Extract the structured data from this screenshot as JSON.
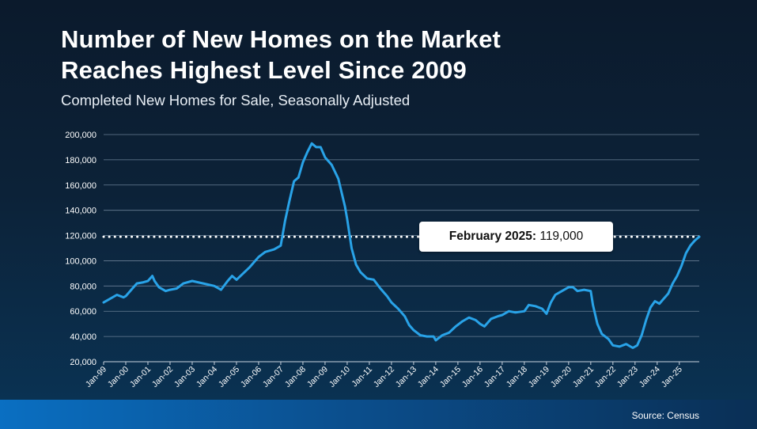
{
  "title_line1": "Number of New Homes on the Market",
  "title_line2": "Reaches Highest Level Since 2009",
  "subtitle": "Completed New Homes for Sale, Seasonally Adjusted",
  "source": "Source: Census",
  "callout": {
    "label": "February 2025:",
    "value": "119,000"
  },
  "colors": {
    "line": "#29a3e8",
    "grid": "#6a7f95",
    "reference": "#ffffff"
  },
  "chart_data": {
    "type": "line",
    "title": "Completed New Homes for Sale, Seasonally Adjusted",
    "xlabel": "",
    "ylabel": "",
    "ylim": [
      20000,
      200000
    ],
    "y_ticks": [
      20000,
      40000,
      60000,
      80000,
      100000,
      120000,
      140000,
      160000,
      180000,
      200000
    ],
    "y_tick_labels": [
      "20,000",
      "40,000",
      "60,000",
      "80,000",
      "100,000",
      "120,000",
      "140,000",
      "160,000",
      "180,000",
      "200,000"
    ],
    "x_ticks": [
      "Jan-99",
      "Jan-00",
      "Jan-01",
      "Jan-02",
      "Jan-03",
      "Jan-04",
      "Jan-05",
      "Jan-06",
      "Jan-07",
      "Jan-08",
      "Jan-09",
      "Jan-10",
      "Jan-11",
      "Jan-12",
      "Jan-13",
      "Jan-14",
      "Jan-15",
      "Jan-16",
      "Jan-17",
      "Jan-18",
      "Jan-19",
      "Jan-20",
      "Jan-21",
      "Jan-22",
      "Jan-23",
      "Jan-24",
      "Jan-25"
    ],
    "reference_line": {
      "value": 119000,
      "style": "dotted",
      "label": "February 2025: 119,000"
    },
    "series": [
      {
        "name": "Completed New Homes for Sale",
        "points": [
          [
            1999.0,
            67000
          ],
          [
            1999.3,
            70000
          ],
          [
            1999.6,
            73000
          ],
          [
            1999.9,
            71000
          ],
          [
            2000.0,
            72000
          ],
          [
            2000.3,
            78000
          ],
          [
            2000.5,
            82000
          ],
          [
            2000.8,
            83000
          ],
          [
            2001.0,
            84000
          ],
          [
            2001.2,
            88000
          ],
          [
            2001.3,
            84000
          ],
          [
            2001.5,
            79000
          ],
          [
            2001.8,
            76000
          ],
          [
            2002.0,
            77000
          ],
          [
            2002.3,
            78000
          ],
          [
            2002.6,
            82000
          ],
          [
            2003.0,
            84000
          ],
          [
            2003.5,
            82000
          ],
          [
            2004.0,
            80000
          ],
          [
            2004.3,
            77000
          ],
          [
            2004.6,
            84000
          ],
          [
            2004.8,
            88000
          ],
          [
            2005.0,
            85000
          ],
          [
            2005.3,
            90000
          ],
          [
            2005.6,
            95000
          ],
          [
            2006.0,
            103000
          ],
          [
            2006.3,
            107000
          ],
          [
            2006.7,
            109000
          ],
          [
            2007.0,
            112000
          ],
          [
            2007.2,
            132000
          ],
          [
            2007.4,
            148000
          ],
          [
            2007.6,
            163000
          ],
          [
            2007.8,
            166000
          ],
          [
            2008.0,
            178000
          ],
          [
            2008.2,
            186000
          ],
          [
            2008.4,
            193000
          ],
          [
            2008.6,
            190000
          ],
          [
            2008.8,
            190000
          ],
          [
            2009.0,
            182000
          ],
          [
            2009.3,
            176000
          ],
          [
            2009.6,
            165000
          ],
          [
            2009.9,
            143000
          ],
          [
            2010.0,
            133000
          ],
          [
            2010.2,
            110000
          ],
          [
            2010.4,
            97000
          ],
          [
            2010.6,
            91000
          ],
          [
            2010.9,
            86000
          ],
          [
            2011.2,
            85000
          ],
          [
            2011.5,
            78000
          ],
          [
            2011.8,
            72000
          ],
          [
            2012.0,
            67000
          ],
          [
            2012.3,
            62000
          ],
          [
            2012.6,
            56000
          ],
          [
            2012.8,
            49000
          ],
          [
            2013.0,
            45000
          ],
          [
            2013.3,
            41000
          ],
          [
            2013.6,
            40000
          ],
          [
            2013.9,
            40000
          ],
          [
            2014.0,
            37000
          ],
          [
            2014.3,
            41000
          ],
          [
            2014.6,
            43000
          ],
          [
            2014.9,
            48000
          ],
          [
            2015.2,
            52000
          ],
          [
            2015.5,
            55000
          ],
          [
            2015.8,
            53000
          ],
          [
            2016.0,
            50000
          ],
          [
            2016.2,
            48000
          ],
          [
            2016.5,
            54000
          ],
          [
            2016.8,
            56000
          ],
          [
            2017.0,
            57000
          ],
          [
            2017.3,
            60000
          ],
          [
            2017.6,
            59000
          ],
          [
            2018.0,
            60000
          ],
          [
            2018.2,
            65000
          ],
          [
            2018.5,
            64000
          ],
          [
            2018.8,
            62000
          ],
          [
            2019.0,
            58000
          ],
          [
            2019.2,
            67000
          ],
          [
            2019.4,
            73000
          ],
          [
            2019.7,
            76000
          ],
          [
            2020.0,
            79000
          ],
          [
            2020.2,
            79000
          ],
          [
            2020.4,
            76000
          ],
          [
            2020.7,
            77000
          ],
          [
            2021.0,
            76000
          ],
          [
            2021.1,
            65000
          ],
          [
            2021.3,
            50000
          ],
          [
            2021.5,
            42000
          ],
          [
            2021.8,
            38000
          ],
          [
            2022.0,
            33000
          ],
          [
            2022.3,
            32000
          ],
          [
            2022.6,
            34000
          ],
          [
            2022.9,
            31000
          ],
          [
            2023.1,
            33000
          ],
          [
            2023.3,
            41000
          ],
          [
            2023.5,
            53000
          ],
          [
            2023.7,
            63000
          ],
          [
            2023.9,
            68000
          ],
          [
            2024.1,
            66000
          ],
          [
            2024.3,
            70000
          ],
          [
            2024.5,
            74000
          ],
          [
            2024.7,
            82000
          ],
          [
            2024.9,
            88000
          ],
          [
            2025.1,
            96000
          ],
          [
            2025.3,
            106000
          ],
          [
            2025.5,
            112000
          ],
          [
            2025.7,
            116000
          ],
          [
            2025.9,
            119000
          ]
        ]
      }
    ]
  }
}
